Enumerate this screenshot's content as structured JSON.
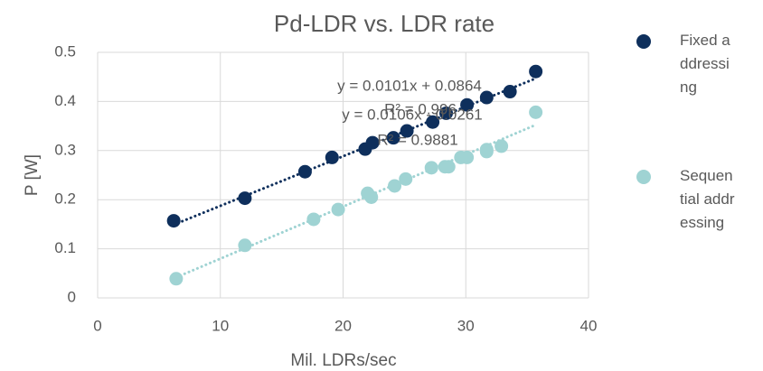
{
  "chart_data": {
    "type": "scatter",
    "title": "Pd-LDR vs. LDR rate",
    "xlabel": "Mil. LDRs/sec",
    "ylabel": "P [W]",
    "xlim": [
      0,
      40
    ],
    "xticks": [
      0,
      10,
      20,
      30,
      40
    ],
    "ylim": [
      0,
      0.5
    ],
    "yticks": [
      0,
      0.1,
      0.2,
      0.3,
      0.4,
      0.5
    ],
    "grid": true,
    "legend": "right",
    "series": [
      {
        "name": "Fixed addressing",
        "color": "#0e2f5c",
        "x": [
          6.2,
          12.0,
          16.9,
          19.1,
          21.8,
          22.4,
          24.1,
          25.2,
          27.3,
          28.4,
          30.1,
          31.7,
          33.6,
          35.7
        ],
        "values": [
          0.157,
          0.203,
          0.257,
          0.286,
          0.303,
          0.316,
          0.326,
          0.34,
          0.358,
          0.376,
          0.393,
          0.408,
          0.42,
          0.461
        ],
        "trendline": {
          "slope": 0.0101,
          "intercept": 0.0864,
          "equation": "y = 0.0101x + 0.0864",
          "r2": "R² = 0.996"
        }
      },
      {
        "name": "Sequential addressing",
        "color": "#9fd3d3",
        "x": [
          6.4,
          12.0,
          17.6,
          19.6,
          22.0,
          22.3,
          24.2,
          25.1,
          27.2,
          28.3,
          28.6,
          29.6,
          30.1,
          31.7,
          31.7,
          32.9,
          35.7
        ],
        "values": [
          0.039,
          0.107,
          0.16,
          0.18,
          0.213,
          0.205,
          0.228,
          0.242,
          0.265,
          0.267,
          0.267,
          0.286,
          0.286,
          0.298,
          0.302,
          0.309,
          0.378
        ],
        "trendline": {
          "slope": 0.0106,
          "intercept": -0.0261,
          "equation": "y = 0.0106x - 0.0261",
          "r2": "R² = 0.9881"
        }
      }
    ]
  }
}
